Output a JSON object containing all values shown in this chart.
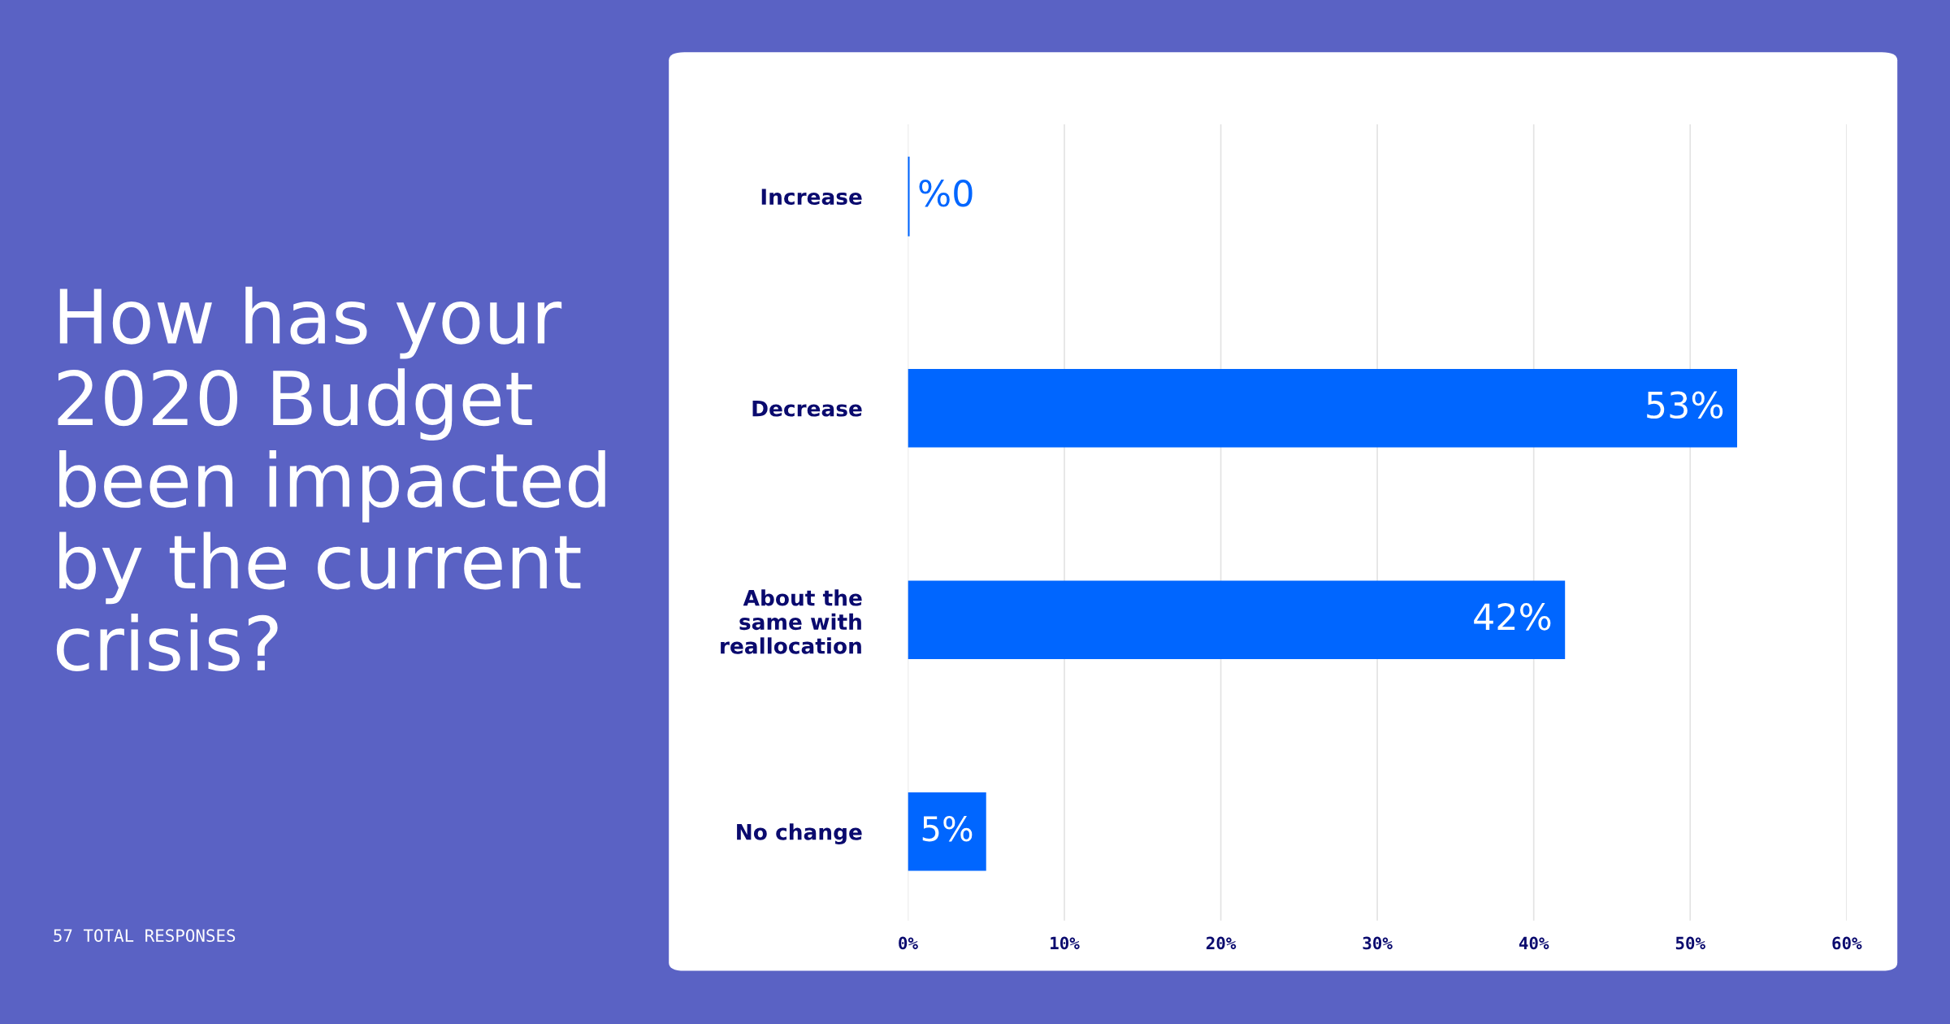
{
  "chart_data": {
    "type": "bar",
    "orientation": "horizontal",
    "title": "How has your\n2020 Budget\nbeen impacted\nby the current\ncrisis?",
    "annotations": [
      "57 TOTAL RESPONSES"
    ],
    "categories": [
      "Increase",
      "Decrease",
      "About the\nsame with\nreallocation",
      "No change"
    ],
    "values": [
      0,
      53,
      42,
      5
    ],
    "value_labels": [
      "%0",
      "53%",
      "42%",
      "5%"
    ],
    "color": "#0066ff",
    "xlim": [
      0,
      60
    ],
    "xticks": [
      {
        "value": 0,
        "label": "0%"
      },
      {
        "value": 10,
        "label": "10%"
      },
      {
        "value": 20,
        "label": "20%"
      },
      {
        "value": 30,
        "label": "30%"
      },
      {
        "value": 40,
        "label": "40%"
      },
      {
        "value": 50,
        "label": "50%"
      },
      {
        "value": 60,
        "label": "60%"
      }
    ],
    "grid": "x",
    "legend": false
  }
}
